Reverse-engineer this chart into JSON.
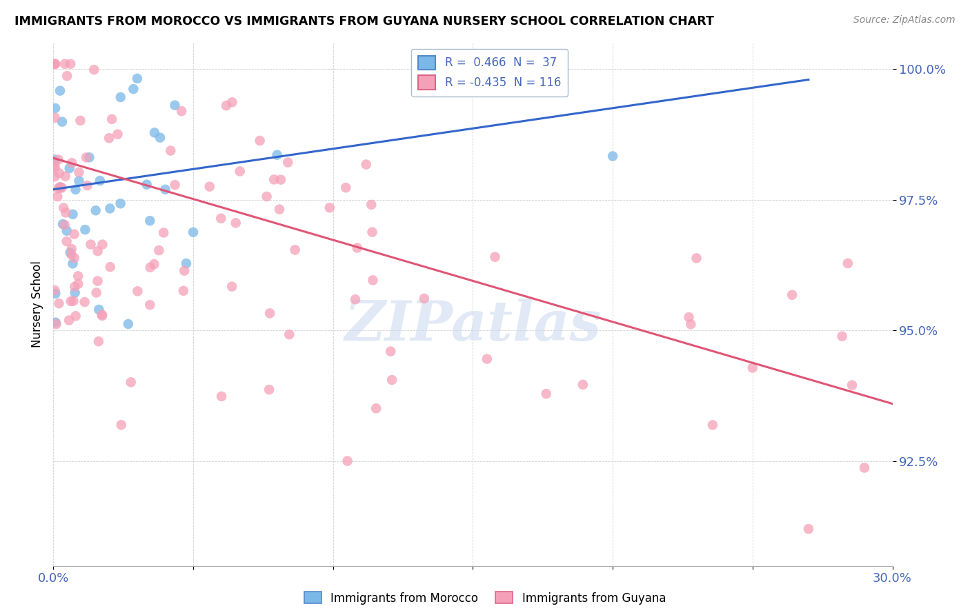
{
  "title": "IMMIGRANTS FROM MOROCCO VS IMMIGRANTS FROM GUYANA NURSERY SCHOOL CORRELATION CHART",
  "source": "Source: ZipAtlas.com",
  "ylabel": "Nursery School",
  "xlim": [
    0.0,
    0.3
  ],
  "ylim": [
    0.905,
    1.005
  ],
  "ytick_values": [
    0.925,
    0.95,
    0.975,
    1.0
  ],
  "ytick_labels": [
    "92.5%",
    "95.0%",
    "97.5%",
    "100.0%"
  ],
  "xtick_values": [
    0.0,
    0.05,
    0.1,
    0.15,
    0.2,
    0.25,
    0.3
  ],
  "xtick_labels": [
    "0.0%",
    "",
    "",
    "",
    "",
    "",
    "30.0%"
  ],
  "legend_morocco": "R =  0.466  N =  37",
  "legend_guyana": "R = -0.435  N = 116",
  "morocco_color": "#7ab8e8",
  "guyana_color": "#f5a0b8",
  "morocco_line_color": "#3366cc",
  "guyana_line_color": "#e05575",
  "watermark": "ZIPatlas",
  "legend_bottom_morocco": "Immigrants from Morocco",
  "legend_bottom_guyana": "Immigrants from Guyana",
  "morocco_line_x0": 0.0,
  "morocco_line_y0": 0.977,
  "morocco_line_x1": 0.27,
  "morocco_line_y1": 0.998,
  "guyana_line_x0": 0.0,
  "guyana_line_y0": 0.983,
  "guyana_line_x1": 0.3,
  "guyana_line_y1": 0.936
}
